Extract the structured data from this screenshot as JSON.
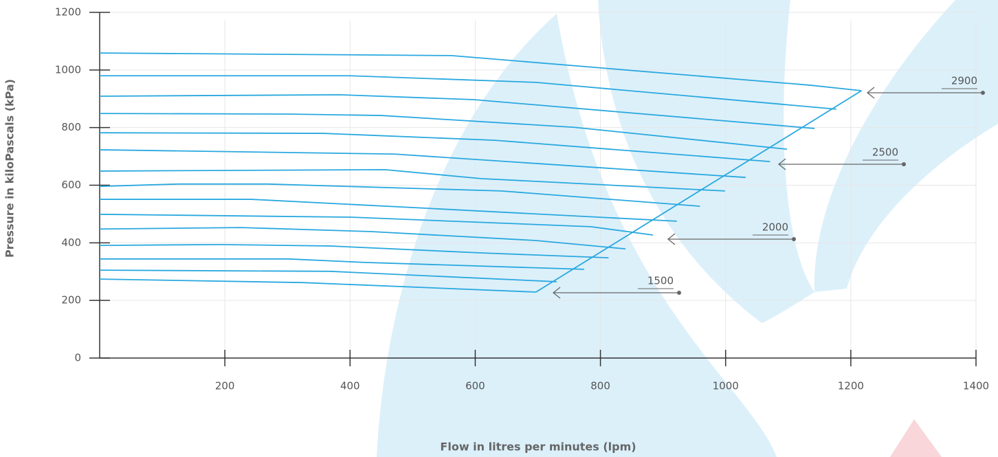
{
  "chart_data": {
    "type": "line",
    "xlabel": "Flow in litres per minutes (lpm)",
    "ylabel": "Pressure in kiloPascals (kPa)",
    "xlim": [
      0,
      1400
    ],
    "xticks": [
      200,
      400,
      600,
      800,
      1000,
      1200,
      1400
    ],
    "ylim": [
      0,
      1200
    ],
    "yticks": [
      0,
      200,
      400,
      600,
      800,
      1000,
      1200
    ],
    "grid": true,
    "color": "#29a8df",
    "series": [
      {
        "x": [
          0,
          562,
          1136,
          1217
        ],
        "values": [
          1059,
          1050,
          947,
          928
        ]
      },
      {
        "x": [
          0,
          400,
          697,
          1177
        ],
        "values": [
          980,
          980,
          957,
          864
        ]
      },
      {
        "x": [
          0,
          384,
          598,
          1142
        ],
        "values": [
          909,
          914,
          897,
          797
        ]
      },
      {
        "x": [
          0,
          302,
          450,
          758,
          1098
        ],
        "values": [
          849,
          847,
          842,
          801,
          725
        ]
      },
      {
        "x": [
          0,
          357,
          631,
          1071
        ],
        "values": [
          782,
          780,
          756,
          682
        ]
      },
      {
        "x": [
          0,
          472,
          1032
        ],
        "values": [
          723,
          708,
          627
        ]
      },
      {
        "x": [
          0,
          456,
          609,
          999
        ],
        "values": [
          649,
          654,
          623,
          580
        ]
      },
      {
        "x": [
          0,
          126,
          269,
          642,
          959
        ],
        "values": [
          596,
          604,
          604,
          580,
          527
        ]
      },
      {
        "x": [
          0,
          242,
          522,
          922
        ],
        "values": [
          551,
          551,
          520,
          475
        ]
      },
      {
        "x": [
          0,
          401,
          785,
          884
        ],
        "values": [
          499,
          489,
          456,
          427
        ]
      },
      {
        "x": [
          0,
          225,
          434,
          697,
          840
        ],
        "values": [
          448,
          453,
          439,
          408,
          379
        ]
      },
      {
        "x": [
          0,
          192,
          368,
          609,
          813
        ],
        "values": [
          391,
          394,
          389,
          365,
          348
        ]
      },
      {
        "x": [
          0,
          302,
          423,
          774
        ],
        "values": [
          344,
          344,
          332,
          308
        ]
      },
      {
        "x": [
          0,
          368,
          730
        ],
        "values": [
          305,
          301,
          265
        ]
      },
      {
        "x": [
          0,
          324,
          697
        ],
        "values": [
          274,
          262,
          229
        ]
      },
      {
        "x": [
          697,
          1217
        ],
        "values": [
          229,
          928
        ]
      }
    ],
    "annotations": [
      "2900",
      "2500",
      "2000",
      "1500"
    ]
  }
}
